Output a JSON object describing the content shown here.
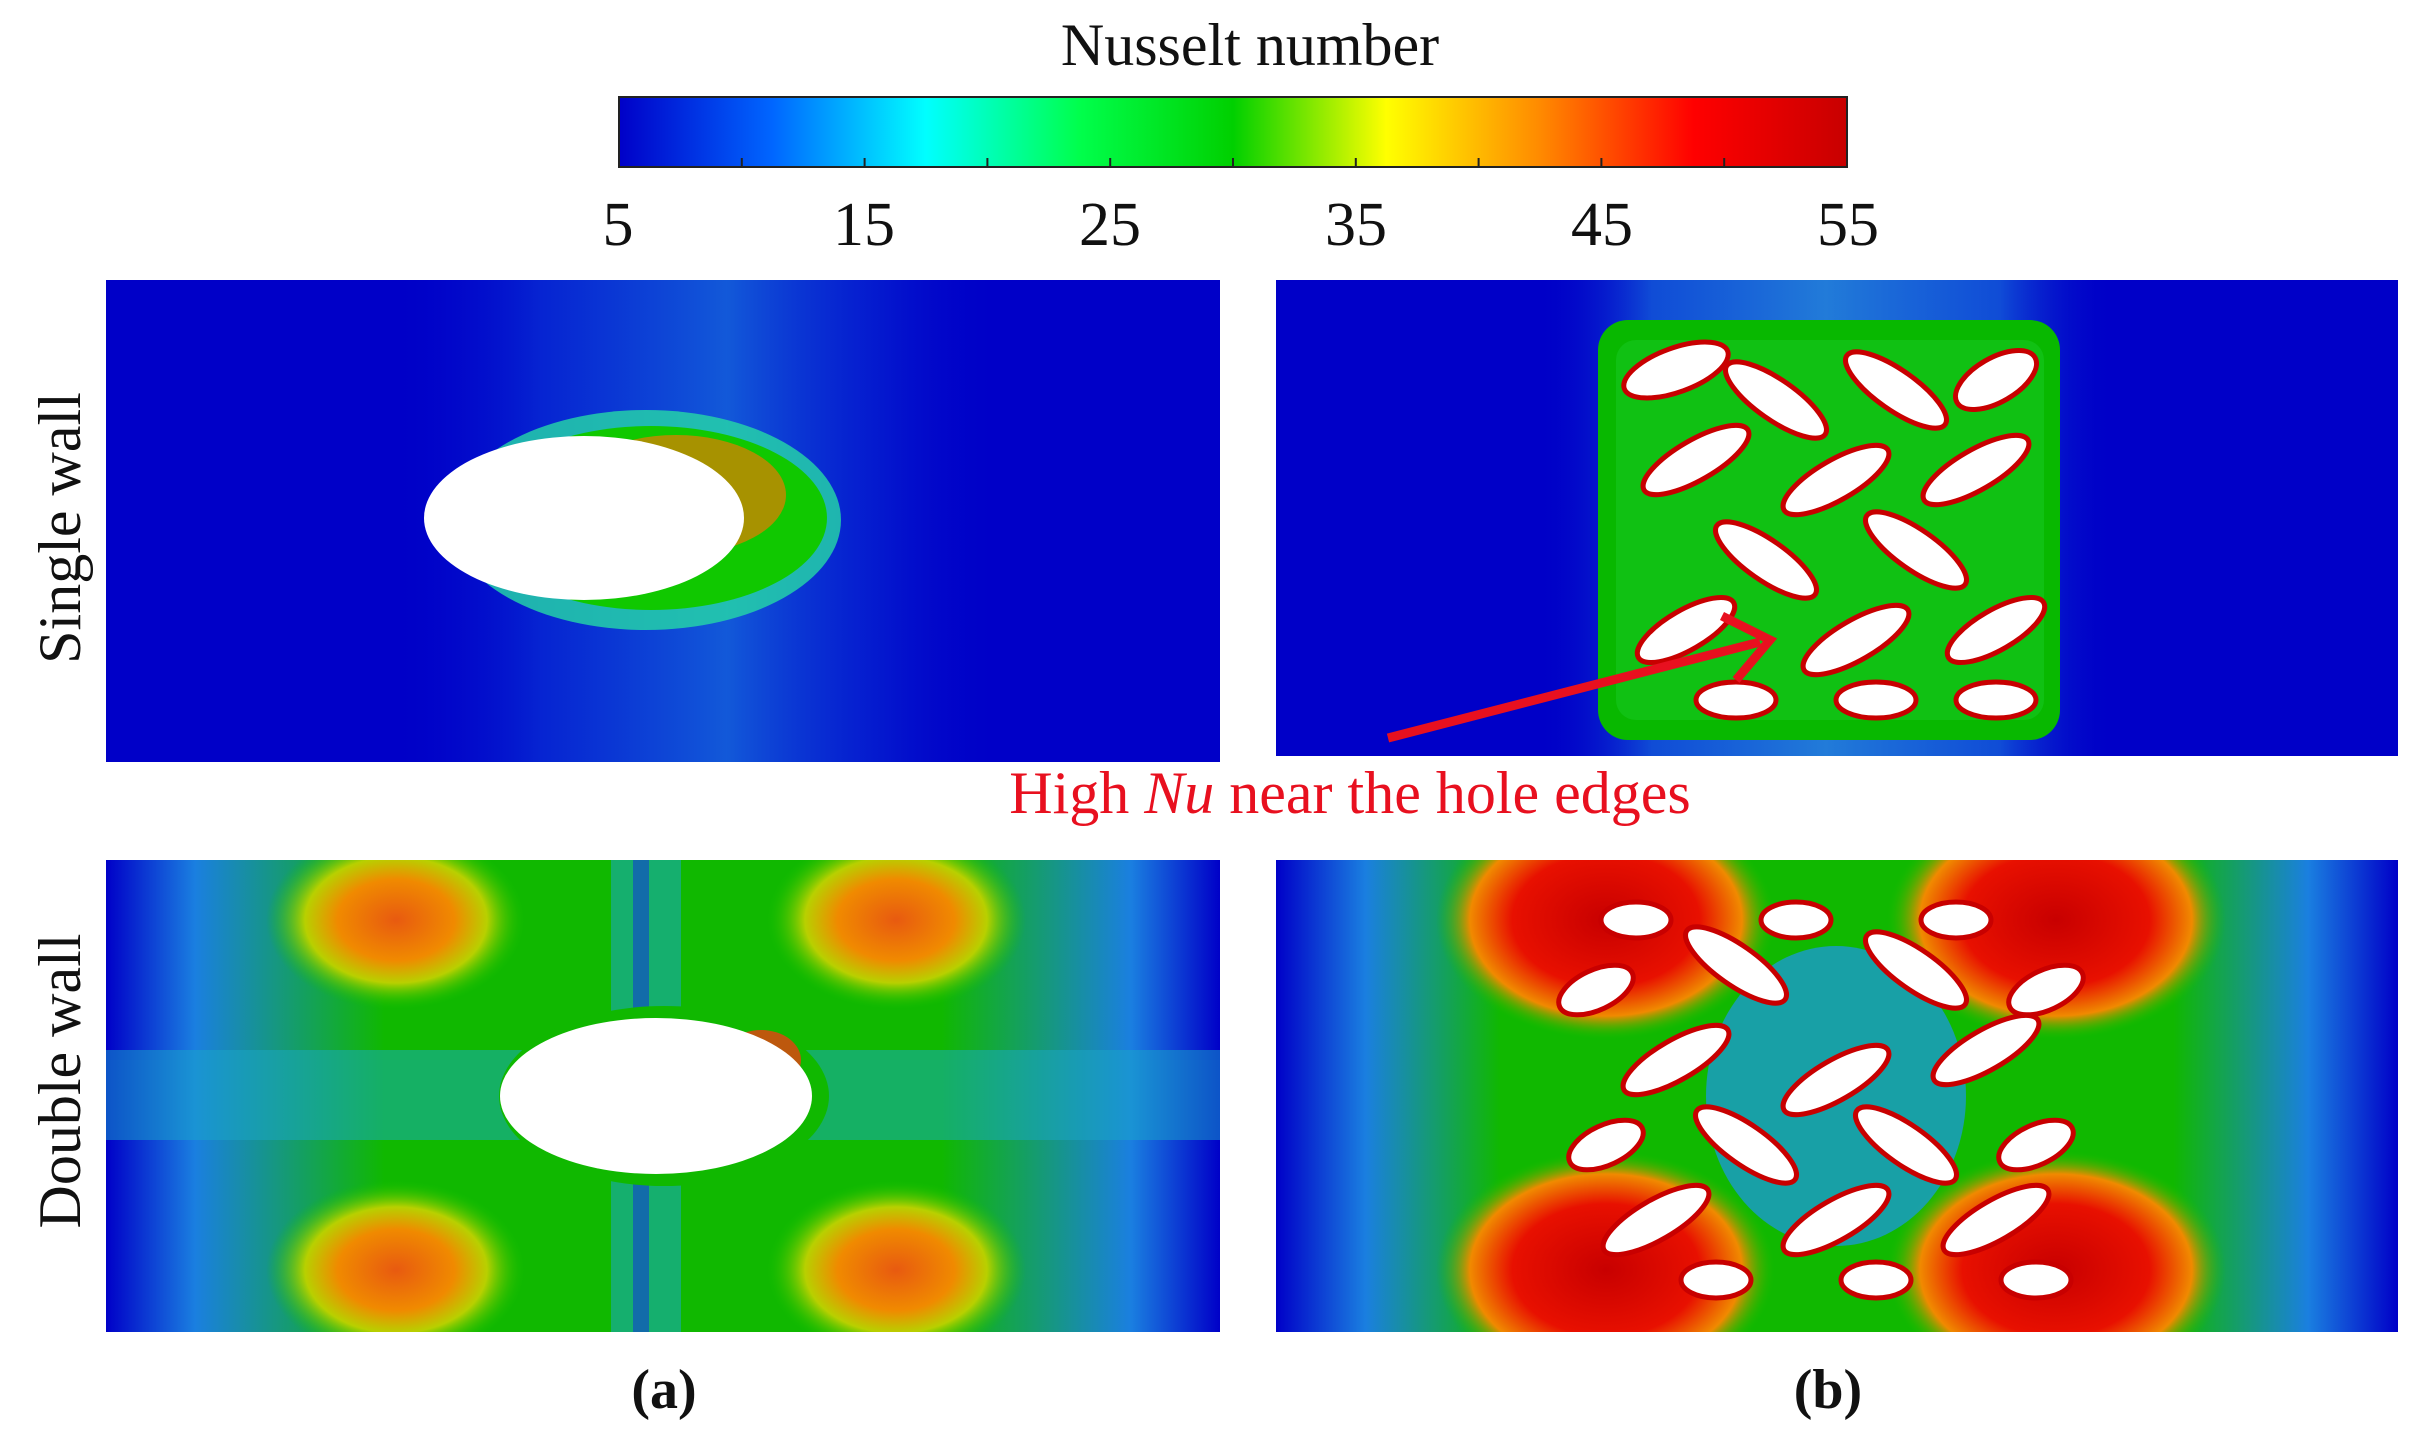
{
  "colorbar": {
    "title": "Nusselt number",
    "ticks": [
      "5",
      "15",
      "25",
      "35",
      "45",
      "55"
    ],
    "min": 5,
    "max": 55,
    "colors": [
      "#0000c8",
      "#0066ff",
      "#00ffff",
      "#00ff4c",
      "#00d000",
      "#ffff00",
      "#ff8a00",
      "#ff0000",
      "#c80000"
    ]
  },
  "rows": {
    "top": "Single wall",
    "bottom": "Double wall"
  },
  "annotation": {
    "prefix": "High ",
    "symbol": "Nu",
    "suffix": " near the hole edges",
    "color": "#e8101f"
  },
  "panels": {
    "a": "(a)",
    "b": "(b)"
  }
}
